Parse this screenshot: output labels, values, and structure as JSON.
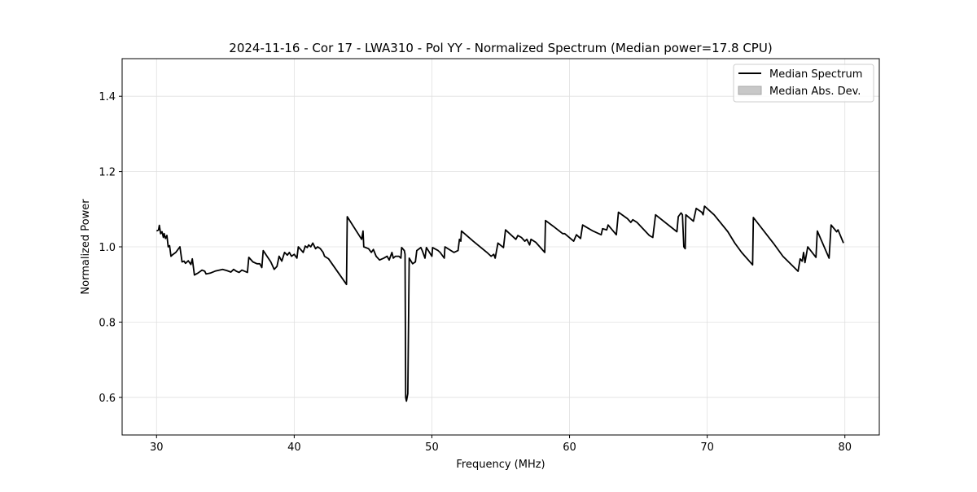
{
  "chart_data": {
    "type": "line",
    "title": "2024-11-16 - Cor 17 - LWA310 - Pol YY - Normalized Spectrum (Median power=17.8 CPU)",
    "xlabel": "Frequency (MHz)",
    "ylabel": "Normalized Power",
    "xlim": [
      27.5,
      82.5
    ],
    "ylim": [
      0.5,
      1.5
    ],
    "xticks": [
      30,
      40,
      50,
      60,
      70,
      80
    ],
    "yticks": [
      0.6,
      0.8,
      1.0,
      1.2,
      1.4
    ],
    "xtick_labels": [
      "30",
      "40",
      "50",
      "60",
      "70",
      "80"
    ],
    "ytick_labels": [
      "0.6",
      "0.8",
      "1.0",
      "1.2",
      "1.4"
    ],
    "grid": true,
    "legend": {
      "placement": "top-right",
      "entries": [
        {
          "label": "Median Spectrum",
          "kind": "line",
          "color": "#000000"
        },
        {
          "label": "Median Abs. Dev.",
          "kind": "patch",
          "color": "#c8c8c8"
        }
      ]
    },
    "series": [
      {
        "name": "Median Spectrum",
        "color": "#000000",
        "points": [
          [
            30.0,
            1.042
          ],
          [
            30.15,
            1.045
          ],
          [
            30.2,
            1.057
          ],
          [
            30.3,
            1.035
          ],
          [
            30.4,
            1.04
          ],
          [
            30.5,
            1.025
          ],
          [
            30.55,
            1.035
          ],
          [
            30.65,
            1.022
          ],
          [
            30.75,
            1.03
          ],
          [
            30.85,
            1.0
          ],
          [
            30.95,
            1.003
          ],
          [
            31.05,
            0.975
          ],
          [
            31.2,
            0.98
          ],
          [
            31.4,
            0.985
          ],
          [
            31.7,
            1.0
          ],
          [
            31.85,
            0.96
          ],
          [
            32.0,
            0.962
          ],
          [
            32.1,
            0.956
          ],
          [
            32.3,
            0.963
          ],
          [
            32.5,
            0.953
          ],
          [
            32.6,
            0.968
          ],
          [
            32.75,
            0.925
          ],
          [
            33.0,
            0.93
          ],
          [
            33.3,
            0.938
          ],
          [
            33.5,
            0.935
          ],
          [
            33.6,
            0.928
          ],
          [
            33.9,
            0.93
          ],
          [
            34.3,
            0.936
          ],
          [
            34.8,
            0.94
          ],
          [
            35.1,
            0.937
          ],
          [
            35.4,
            0.933
          ],
          [
            35.6,
            0.94
          ],
          [
            35.8,
            0.935
          ],
          [
            36.0,
            0.932
          ],
          [
            36.2,
            0.938
          ],
          [
            36.6,
            0.932
          ],
          [
            36.7,
            0.972
          ],
          [
            37.0,
            0.96
          ],
          [
            37.3,
            0.955
          ],
          [
            37.5,
            0.955
          ],
          [
            37.65,
            0.945
          ],
          [
            37.75,
            0.99
          ],
          [
            38.3,
            0.96
          ],
          [
            38.55,
            0.94
          ],
          [
            38.75,
            0.948
          ],
          [
            38.9,
            0.975
          ],
          [
            39.1,
            0.962
          ],
          [
            39.3,
            0.985
          ],
          [
            39.5,
            0.978
          ],
          [
            39.65,
            0.985
          ],
          [
            39.8,
            0.975
          ],
          [
            40.0,
            0.98
          ],
          [
            40.2,
            0.97
          ],
          [
            40.3,
            1.0
          ],
          [
            40.65,
            0.985
          ],
          [
            40.8,
            1.002
          ],
          [
            40.95,
            0.998
          ],
          [
            41.05,
            1.005
          ],
          [
            41.2,
            1.0
          ],
          [
            41.35,
            1.01
          ],
          [
            41.55,
            0.995
          ],
          [
            41.7,
            1.0
          ],
          [
            41.9,
            0.995
          ],
          [
            42.1,
            0.985
          ],
          [
            42.2,
            0.975
          ],
          [
            42.5,
            0.968
          ],
          [
            43.8,
            0.9
          ],
          [
            43.85,
            1.08
          ],
          [
            44.9,
            1.02
          ],
          [
            45.0,
            1.042
          ],
          [
            45.05,
            1.0
          ],
          [
            45.4,
            0.995
          ],
          [
            45.6,
            0.985
          ],
          [
            45.75,
            0.993
          ],
          [
            45.95,
            0.975
          ],
          [
            46.2,
            0.965
          ],
          [
            46.5,
            0.97
          ],
          [
            46.75,
            0.975
          ],
          [
            46.9,
            0.965
          ],
          [
            47.0,
            0.975
          ],
          [
            47.1,
            0.985
          ],
          [
            47.2,
            0.97
          ],
          [
            47.35,
            0.975
          ],
          [
            47.6,
            0.975
          ],
          [
            47.75,
            0.97
          ],
          [
            47.8,
            0.998
          ],
          [
            48.0,
            0.99
          ],
          [
            48.05,
            0.98
          ],
          [
            48.1,
            0.6
          ],
          [
            48.15,
            0.59
          ],
          [
            48.25,
            0.61
          ],
          [
            48.35,
            0.97
          ],
          [
            48.6,
            0.955
          ],
          [
            48.8,
            0.96
          ],
          [
            48.9,
            0.99
          ],
          [
            49.2,
            0.998
          ],
          [
            49.3,
            0.99
          ],
          [
            49.5,
            0.97
          ],
          [
            49.6,
            0.998
          ],
          [
            50.0,
            0.975
          ],
          [
            50.05,
            0.998
          ],
          [
            50.45,
            0.99
          ],
          [
            50.6,
            0.985
          ],
          [
            50.9,
            0.97
          ],
          [
            50.95,
            1.0
          ],
          [
            51.6,
            0.985
          ],
          [
            51.9,
            0.99
          ],
          [
            52.0,
            1.02
          ],
          [
            52.1,
            1.015
          ],
          [
            52.15,
            1.042
          ],
          [
            53.0,
            1.015
          ],
          [
            54.0,
            0.985
          ],
          [
            54.3,
            0.975
          ],
          [
            54.5,
            0.98
          ],
          [
            54.6,
            0.97
          ],
          [
            54.8,
            1.01
          ],
          [
            55.2,
            0.998
          ],
          [
            55.35,
            1.045
          ],
          [
            56.1,
            1.02
          ],
          [
            56.25,
            1.03
          ],
          [
            56.5,
            1.025
          ],
          [
            56.75,
            1.015
          ],
          [
            56.9,
            1.02
          ],
          [
            57.1,
            1.005
          ],
          [
            57.2,
            1.02
          ],
          [
            57.55,
            1.012
          ],
          [
            58.2,
            0.985
          ],
          [
            58.25,
            1.07
          ],
          [
            58.8,
            1.055
          ],
          [
            59.5,
            1.035
          ],
          [
            59.65,
            1.035
          ],
          [
            60.3,
            1.015
          ],
          [
            60.5,
            1.032
          ],
          [
            60.8,
            1.022
          ],
          [
            60.95,
            1.058
          ],
          [
            61.7,
            1.042
          ],
          [
            62.3,
            1.032
          ],
          [
            62.4,
            1.048
          ],
          [
            62.7,
            1.045
          ],
          [
            62.8,
            1.058
          ],
          [
            63.4,
            1.032
          ],
          [
            63.55,
            1.092
          ],
          [
            64.2,
            1.075
          ],
          [
            64.45,
            1.065
          ],
          [
            64.6,
            1.072
          ],
          [
            64.9,
            1.065
          ],
          [
            65.8,
            1.03
          ],
          [
            66.05,
            1.025
          ],
          [
            66.25,
            1.085
          ],
          [
            67.8,
            1.04
          ],
          [
            67.9,
            1.08
          ],
          [
            68.1,
            1.09
          ],
          [
            68.2,
            1.085
          ],
          [
            68.3,
            1.0
          ],
          [
            68.4,
            0.995
          ],
          [
            68.45,
            1.085
          ],
          [
            69.0,
            1.068
          ],
          [
            69.2,
            1.102
          ],
          [
            69.6,
            1.092
          ],
          [
            69.7,
            1.085
          ],
          [
            69.8,
            1.108
          ],
          [
            70.5,
            1.085
          ],
          [
            71.5,
            1.04
          ],
          [
            72.0,
            1.01
          ],
          [
            72.5,
            0.985
          ],
          [
            73.3,
            0.952
          ],
          [
            73.35,
            1.078
          ],
          [
            74.8,
            1.01
          ],
          [
            75.5,
            0.975
          ],
          [
            76.6,
            0.935
          ],
          [
            76.75,
            0.968
          ],
          [
            76.9,
            0.962
          ],
          [
            77.0,
            0.985
          ],
          [
            77.1,
            0.958
          ],
          [
            77.3,
            1.0
          ],
          [
            77.9,
            0.972
          ],
          [
            78.0,
            1.042
          ],
          [
            78.85,
            0.97
          ],
          [
            79.0,
            1.058
          ],
          [
            79.4,
            1.04
          ],
          [
            79.5,
            1.045
          ],
          [
            79.9,
            1.01
          ]
        ]
      }
    ]
  }
}
